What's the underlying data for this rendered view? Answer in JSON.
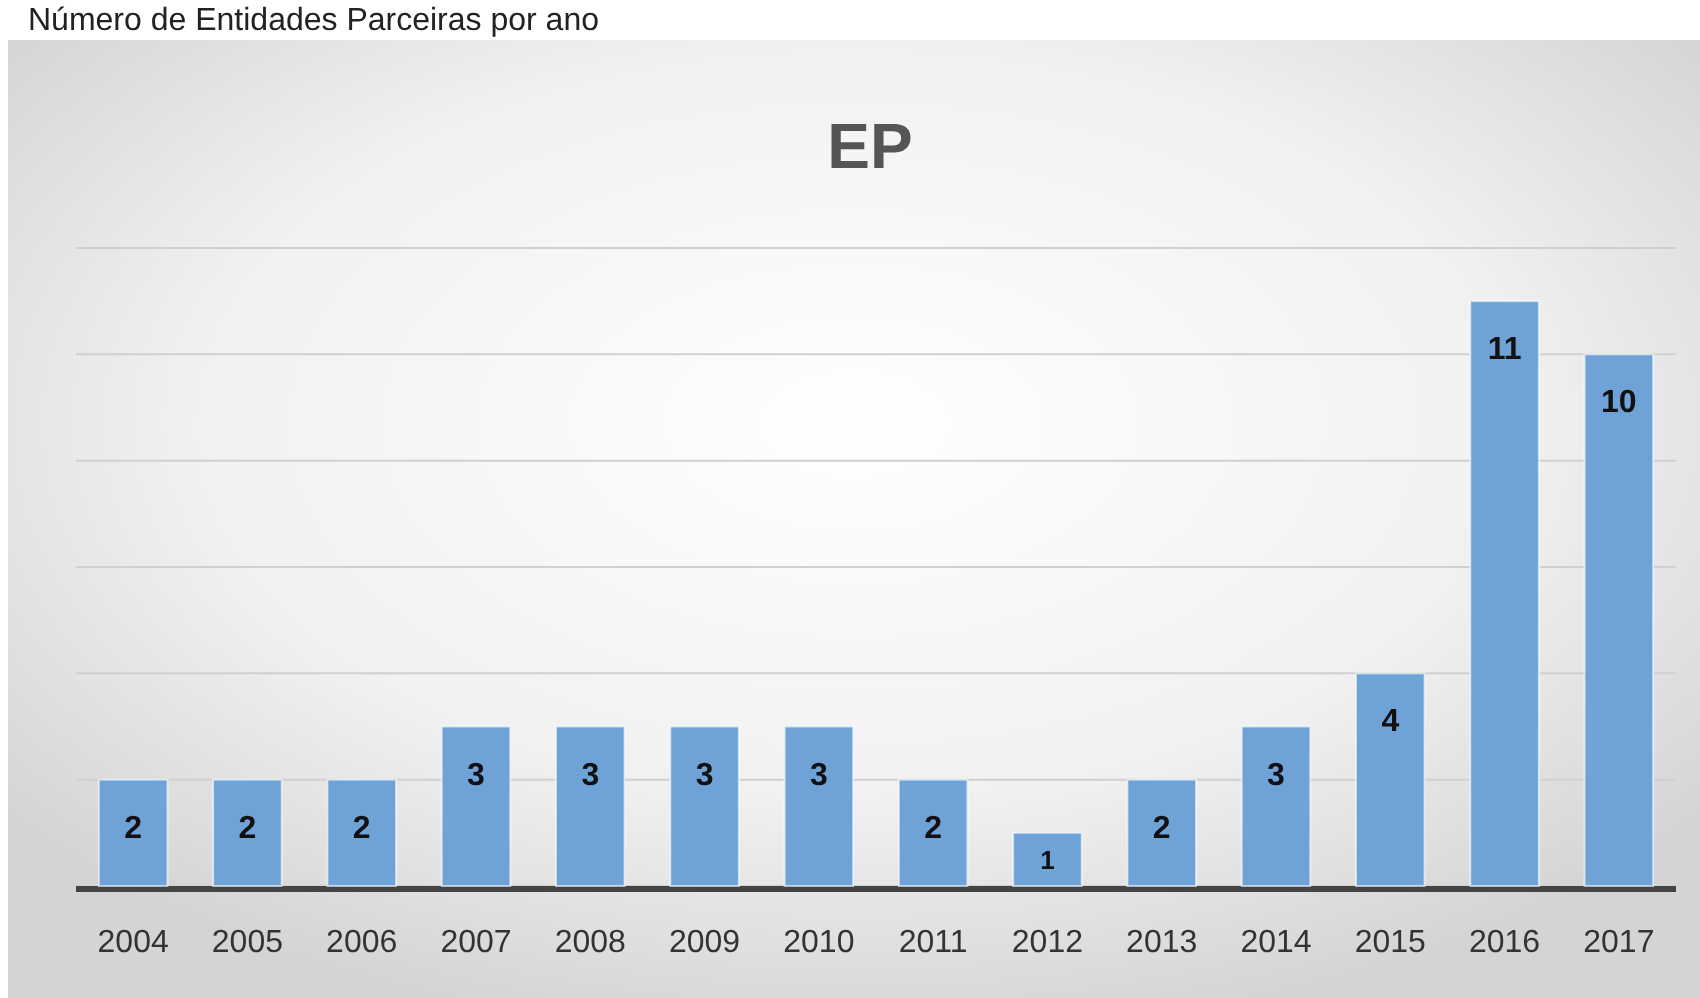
{
  "chart_data": {
    "type": "bar",
    "title": "EP",
    "subtitle": "Número de Entidades Parceiras por ano",
    "categories": [
      "2004",
      "2005",
      "2006",
      "2007",
      "2008",
      "2009",
      "2010",
      "2011",
      "2012",
      "2013",
      "2014",
      "2015",
      "2016",
      "2017"
    ],
    "values": [
      2,
      2,
      2,
      3,
      3,
      3,
      3,
      2,
      1,
      2,
      3,
      4,
      11,
      10
    ],
    "color": "#6fa3d8",
    "ylim": [
      0,
      12
    ],
    "yticks": [
      {
        "value": 0,
        "label": null
      },
      {
        "value": 2,
        "label": null
      },
      {
        "value": 4,
        "label": null
      },
      {
        "value": 6,
        "label": null
      },
      {
        "value": 8,
        "label": null
      },
      {
        "value": 10,
        "label": null
      },
      {
        "value": 12,
        "label": null
      }
    ],
    "grid": "y",
    "data_labels": true,
    "tick_labels": "x"
  }
}
